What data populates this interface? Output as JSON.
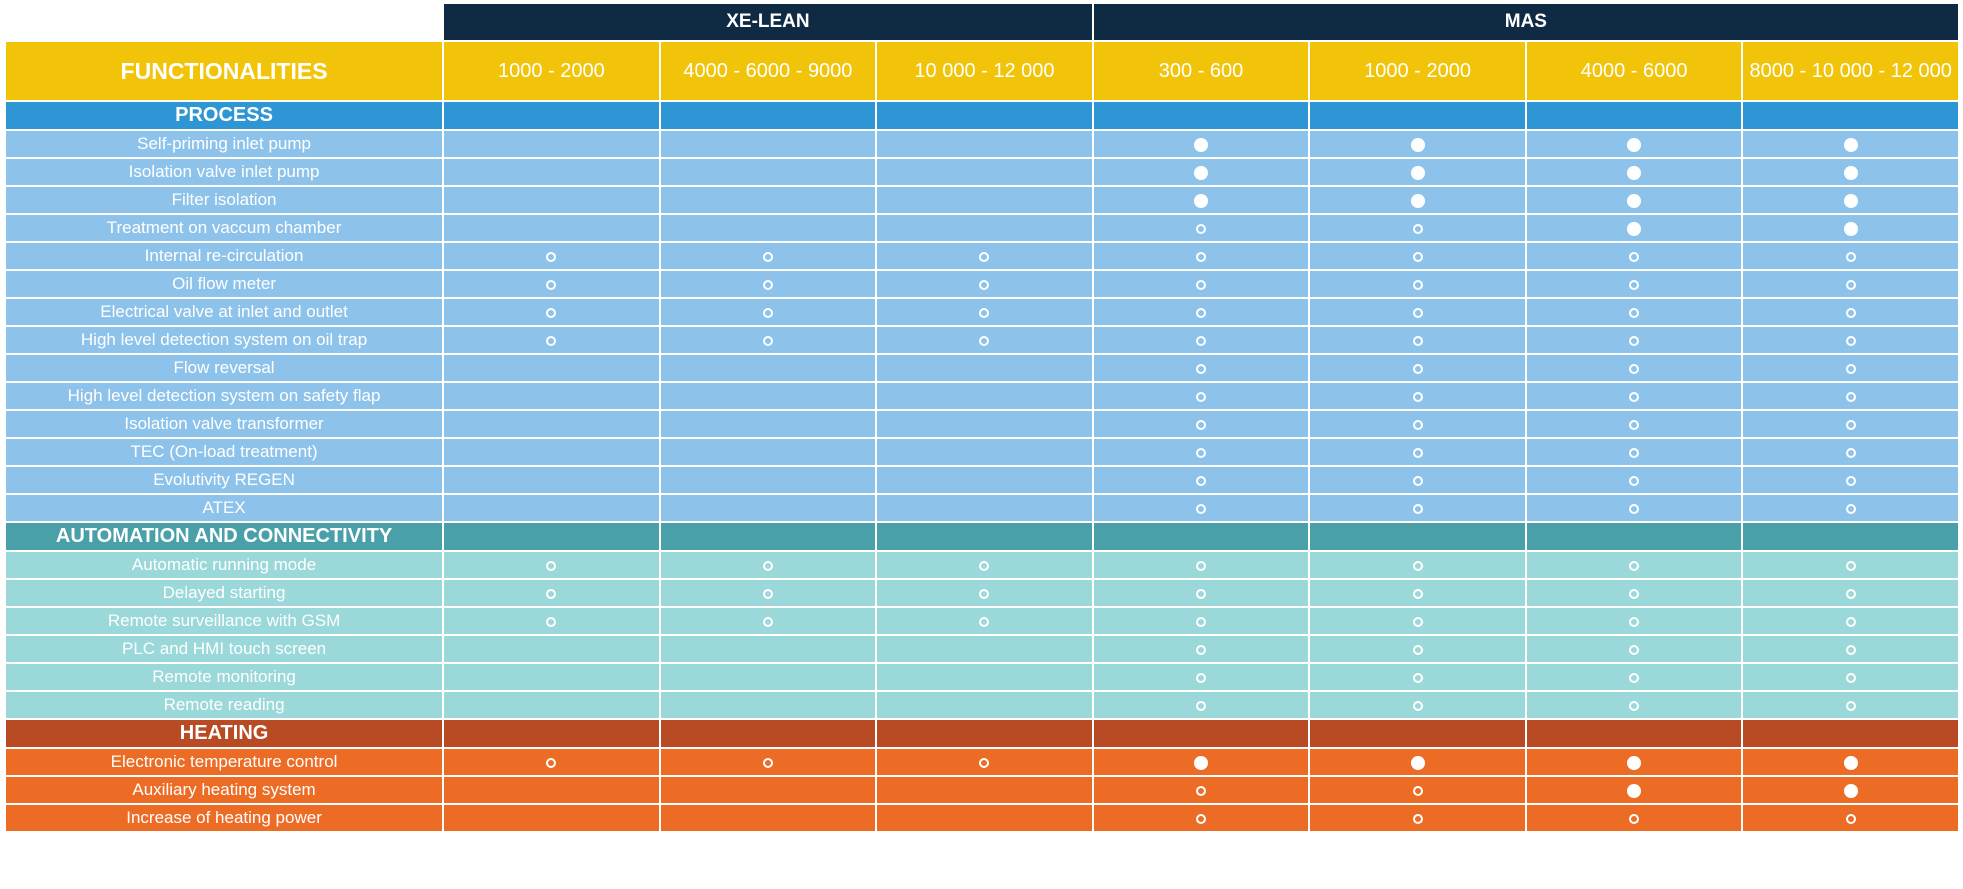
{
  "groups": [
    "XE-LEAN",
    "MAS"
  ],
  "header": {
    "functionalities": "FUNCTIONALITIES",
    "columns": [
      "1000 - 2000",
      "4000 - 6000 - 9000",
      "10 000 - 12 000",
      "300 - 600",
      "1000 - 2000",
      "4000 - 6000",
      "8000 - 10 000 - 12 000"
    ]
  },
  "legend": {
    "filled_icon": "filled-circle-icon",
    "open_icon": "open-circle-icon"
  },
  "colors": {
    "navy": "#0f2a43",
    "yellow": "#f1c40a",
    "process_header": "#2f96d6",
    "process_row": "#8dc3ea",
    "automation_header": "#4aa0a8",
    "automation_row": "#9ad8da",
    "heating_header": "#b84a24",
    "heating_row": "#ec6c26"
  },
  "sections": [
    {
      "key": "process",
      "title": "PROCESS",
      "rows": [
        {
          "label": "Self-priming inlet pump",
          "cells": [
            "",
            "",
            "",
            "filled",
            "filled",
            "filled",
            "filled"
          ]
        },
        {
          "label": "Isolation valve inlet pump",
          "cells": [
            "",
            "",
            "",
            "filled",
            "filled",
            "filled",
            "filled"
          ]
        },
        {
          "label": "Filter isolation",
          "cells": [
            "",
            "",
            "",
            "filled",
            "filled",
            "filled",
            "filled"
          ]
        },
        {
          "label": "Treatment on vaccum chamber",
          "cells": [
            "",
            "",
            "",
            "open",
            "open",
            "filled",
            "filled"
          ]
        },
        {
          "label": "Internal re-circulation",
          "cells": [
            "open",
            "open",
            "open",
            "open",
            "open",
            "open",
            "open"
          ]
        },
        {
          "label": "Oil flow meter",
          "cells": [
            "open",
            "open",
            "open",
            "open",
            "open",
            "open",
            "open"
          ]
        },
        {
          "label": "Electrical valve at inlet and outlet",
          "cells": [
            "open",
            "open",
            "open",
            "open",
            "open",
            "open",
            "open"
          ]
        },
        {
          "label": "High level detection system on oil trap",
          "cells": [
            "open",
            "open",
            "open",
            "open",
            "open",
            "open",
            "open"
          ]
        },
        {
          "label": "Flow reversal",
          "cells": [
            "",
            "",
            "",
            "open",
            "open",
            "open",
            "open"
          ]
        },
        {
          "label": "High level detection system on safety flap",
          "cells": [
            "",
            "",
            "",
            "open",
            "open",
            "open",
            "open"
          ]
        },
        {
          "label": "Isolation valve transformer",
          "cells": [
            "",
            "",
            "",
            "open",
            "open",
            "open",
            "open"
          ]
        },
        {
          "label": "TEC (On-load treatment)",
          "cells": [
            "",
            "",
            "",
            "open",
            "open",
            "open",
            "open"
          ]
        },
        {
          "label": "Evolutivity REGEN",
          "cells": [
            "",
            "",
            "",
            "open",
            "open",
            "open",
            "open"
          ]
        },
        {
          "label": "ATEX",
          "cells": [
            "",
            "",
            "",
            "open",
            "open",
            "open",
            "open"
          ]
        }
      ]
    },
    {
      "key": "automation",
      "title": "AUTOMATION AND CONNECTIVITY",
      "rows": [
        {
          "label": "Automatic running mode",
          "cells": [
            "open",
            "open",
            "open",
            "open",
            "open",
            "open",
            "open"
          ]
        },
        {
          "label": "Delayed starting",
          "cells": [
            "open",
            "open",
            "open",
            "open",
            "open",
            "open",
            "open"
          ]
        },
        {
          "label": "Remote surveillance with GSM",
          "cells": [
            "open",
            "open",
            "open",
            "open",
            "open",
            "open",
            "open"
          ]
        },
        {
          "label": "PLC and HMI touch screen",
          "cells": [
            "",
            "",
            "",
            "open",
            "open",
            "open",
            "open"
          ]
        },
        {
          "label": "Remote monitoring",
          "cells": [
            "",
            "",
            "",
            "open",
            "open",
            "open",
            "open"
          ]
        },
        {
          "label": "Remote reading",
          "cells": [
            "",
            "",
            "",
            "open",
            "open",
            "open",
            "open"
          ]
        }
      ]
    },
    {
      "key": "heating",
      "title": "HEATING",
      "rows": [
        {
          "label": "Electronic temperature control",
          "cells": [
            "open",
            "open",
            "open",
            "filled",
            "filled",
            "filled",
            "filled"
          ]
        },
        {
          "label": "Auxiliary heating system",
          "cells": [
            "",
            "",
            "",
            "open",
            "open",
            "filled",
            "filled"
          ]
        },
        {
          "label": "Increase of heating power",
          "cells": [
            "",
            "",
            "",
            "open",
            "open",
            "open",
            "open"
          ]
        }
      ]
    }
  ]
}
